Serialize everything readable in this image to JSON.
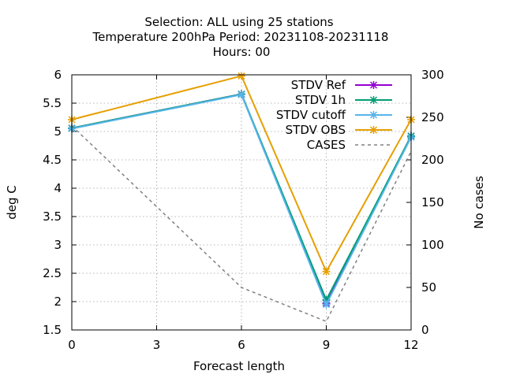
{
  "chart_data": {
    "type": "line",
    "title_lines": [
      "Selection: ALL using    25 stations",
      "Temperature 200hPa   Period: 20231108-20231118",
      "Hours:  00"
    ],
    "xlabel": "Forecast length",
    "ylabel": "deg C",
    "y2label": "No cases",
    "x": [
      0,
      6,
      9,
      12
    ],
    "xlim": [
      0,
      12
    ],
    "ylim": [
      1.5,
      6
    ],
    "y2lim": [
      0,
      300
    ],
    "xticks": [
      "0",
      "3",
      "6",
      "9",
      "12"
    ],
    "yticks": [
      "1.5",
      "2",
      "2.5",
      "3",
      "3.5",
      "4",
      "4.5",
      "5",
      "5.5",
      "6"
    ],
    "y2ticks": [
      "0",
      "50",
      "100",
      "150",
      "200",
      "250",
      "300"
    ],
    "grid": true,
    "legend_position": "top-right",
    "series": [
      {
        "name": "STDV Ref",
        "axis": "left",
        "color": "#9400d3",
        "style": "solid",
        "marker": "cross",
        "values": [
          5.06,
          5.66,
          1.97,
          4.92
        ]
      },
      {
        "name": "STDV 1h",
        "axis": "left",
        "color": "#009e73",
        "style": "solid",
        "marker": "cross",
        "values": [
          5.06,
          5.66,
          2.03,
          4.92
        ]
      },
      {
        "name": "STDV cutoff",
        "axis": "left",
        "color": "#56b4e9",
        "style": "solid",
        "marker": "cross",
        "values": [
          5.05,
          5.65,
          1.95,
          4.9
        ]
      },
      {
        "name": "STDV OBS",
        "axis": "left",
        "color": "#e69f00",
        "style": "solid",
        "marker": "cross",
        "values": [
          5.21,
          5.98,
          2.53,
          5.21
        ]
      },
      {
        "name": "CASES",
        "axis": "right",
        "color": "#808080",
        "style": "dashed",
        "marker": "none",
        "values": [
          240,
          50,
          10,
          210
        ]
      }
    ]
  }
}
